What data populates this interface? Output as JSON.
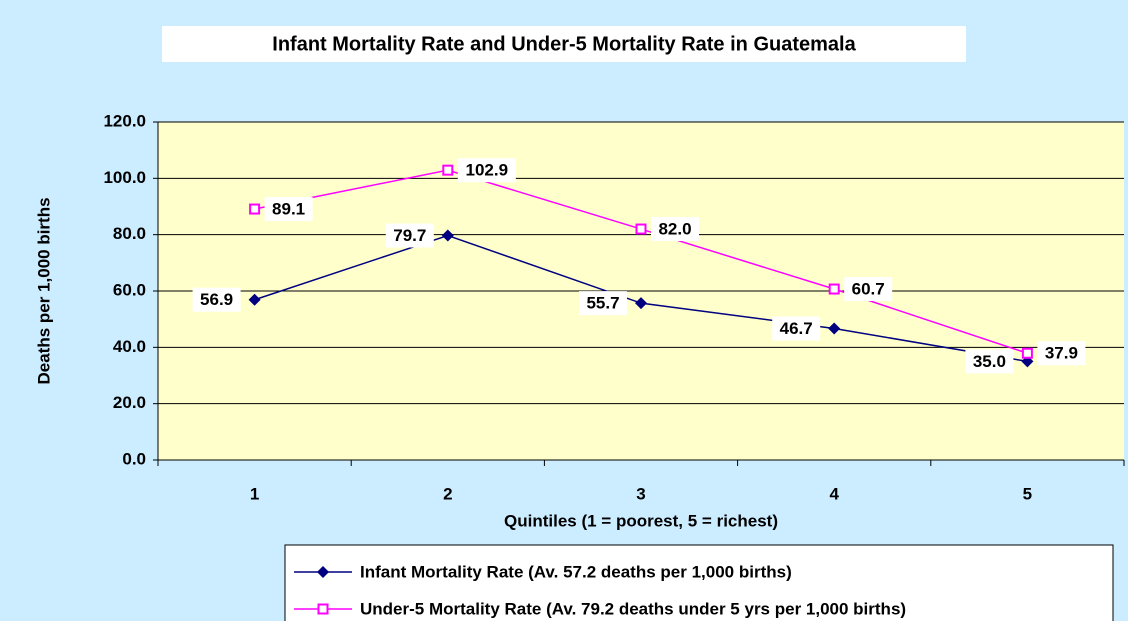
{
  "chart_data": {
    "type": "line",
    "title": "Infant Mortality Rate and Under-5 Mortality Rate in Guatemala",
    "x_label": "Quintiles (1 = poorest, 5 = richest)",
    "y_label": "Deaths per 1,000 births",
    "categories": [
      "1",
      "2",
      "3",
      "4",
      "5"
    ],
    "series": [
      {
        "name": "Infant Mortality Rate (Av. 57.2 deaths per 1,000 births)",
        "color": "#000080",
        "marker": "diamond",
        "values": [
          56.9,
          79.7,
          55.7,
          46.7,
          35.0
        ],
        "value_labels": [
          "56.9",
          "79.7",
          "55.7",
          "46.7",
          "35.0"
        ]
      },
      {
        "name": "Under-5 Mortality Rate (Av. 79.2 deaths under 5 yrs per 1,000 births)",
        "color": "#FF00FF",
        "marker": "square",
        "values": [
          89.1,
          102.9,
          82.0,
          60.7,
          37.9
        ],
        "value_labels": [
          "89.1",
          "102.9",
          "82.0",
          "60.7",
          "37.9"
        ]
      }
    ],
    "ylim": [
      0,
      120
    ],
    "yticks": [
      {
        "value": 0,
        "label": "0.0"
      },
      {
        "value": 20,
        "label": "20.0"
      },
      {
        "value": 40,
        "label": "40.0"
      },
      {
        "value": 60,
        "label": "60.0"
      },
      {
        "value": 80,
        "label": "80.0"
      },
      {
        "value": 100,
        "label": "100.0"
      },
      {
        "value": 120,
        "label": "120.0"
      }
    ],
    "grid": true,
    "legend": "bottom"
  }
}
